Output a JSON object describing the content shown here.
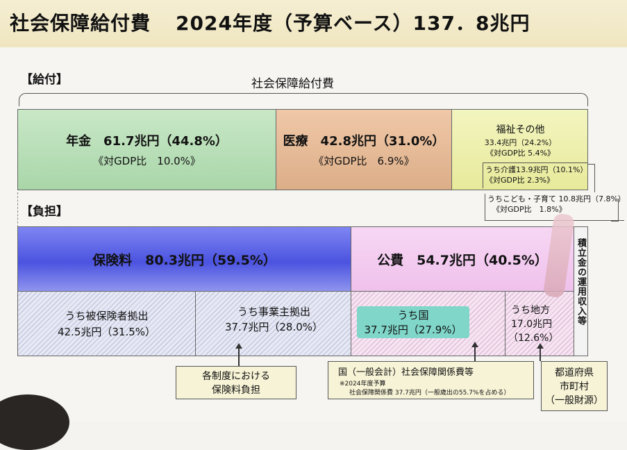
{
  "title": {
    "main": "社会保障給付費",
    "sub": "2024年度（予算ベース）137．8兆円"
  },
  "benefits": {
    "label": "【給付】",
    "brace_label": "社会保障給付費",
    "pension": {
      "title": "年金　61.7兆円（44.8%）",
      "gdp": "《対GDP比　10.0%》"
    },
    "medical": {
      "title": "医療　42.8兆円（31.0%）",
      "gdp": "《対GDP比　6.9%》"
    },
    "welfare": {
      "title": "福祉その他",
      "value": "33.4兆円（24.2%）",
      "gdp": "《対GDP比 5.4%》",
      "care": "うち介護13.9兆円（10.1%）",
      "care_gdp": "《対GDP比 2.3%》",
      "child": "うちこども・子育て 10.8兆円（7.8%）",
      "child_gdp": "《対GDP比　1.8%》"
    }
  },
  "burden": {
    "label": "【負担】",
    "insurance": "保険料　80.3兆円（59.5%）",
    "public": "公費　54.7兆円（40.5%）",
    "reserve": "積立金の運用収入等",
    "insured": {
      "label": "うち被保険者拠出",
      "value": "42.5兆円（31.5%）"
    },
    "employer": {
      "label": "うち事業主拠出",
      "value": "37.7兆円（28.0%）"
    },
    "national": {
      "label": "うち国",
      "value": "37.7兆円（27.9%）"
    },
    "local": {
      "label": "うち地方",
      "value": "17.0兆円",
      "pct": "（12.6%）"
    }
  },
  "callouts": {
    "premium": {
      "line1": "各制度における",
      "line2": "保険料負担"
    },
    "national": {
      "title": "国（一般会計）社会保障関係費等",
      "note1": "※2024年度予算",
      "note2": "社会保障関係費 37.7兆円（一般歳出の55.7%を占める）"
    },
    "local": {
      "line1": "都道府県",
      "line2": "市町村",
      "line3": "（一般財源）"
    }
  },
  "colors": {
    "pension": "#b9dfb9",
    "medical": "#e8b997",
    "welfare": "#eef1a8",
    "insurance": "#5a62e8",
    "public": "#f2c9ef",
    "highlight": "#7fd6c9"
  }
}
